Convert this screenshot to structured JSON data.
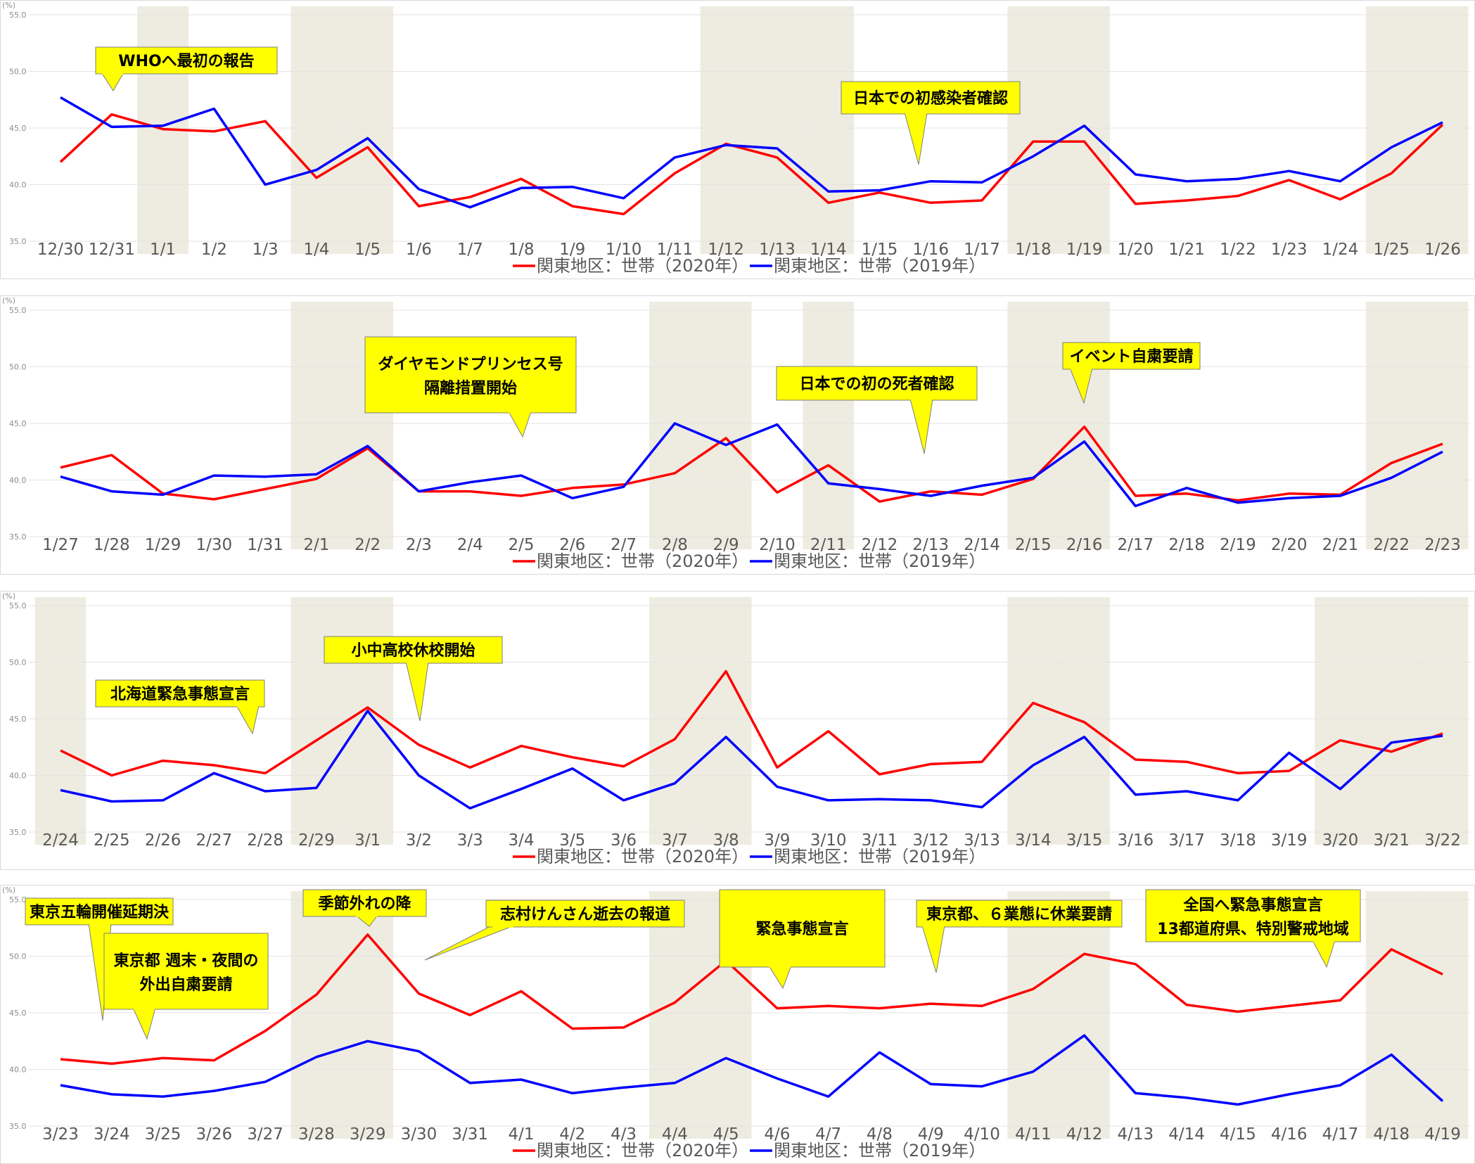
{
  "chart_data": [
    {
      "type": "line",
      "ylabel": "(%)",
      "ylim": [
        35,
        55
      ],
      "yticks": [
        "35.0",
        "40.0",
        "45.0",
        "50.0",
        "55.0"
      ],
      "categories": [
        "12/30",
        "12/31",
        "1/1",
        "1/2",
        "1/3",
        "1/4",
        "1/5",
        "1/6",
        "1/7",
        "1/8",
        "1/9",
        "1/10",
        "1/11",
        "1/12",
        "1/13",
        "1/14",
        "1/15",
        "1/16",
        "1/17",
        "1/18",
        "1/19",
        "1/20",
        "1/21",
        "1/22",
        "1/23",
        "1/24",
        "1/25",
        "1/26"
      ],
      "shaded_categories": [
        "1/1",
        "1/4",
        "1/5",
        "1/12",
        "1/13",
        "1/14",
        "1/18",
        "1/19",
        "1/25",
        "1/26"
      ],
      "series": [
        {
          "name": "関東地区：世帯（2020年）",
          "color": "#ff0000",
          "values": [
            42.0,
            46.2,
            44.9,
            44.7,
            45.6,
            40.6,
            43.3,
            38.1,
            38.9,
            40.5,
            38.1,
            37.4,
            41.0,
            43.6,
            42.4,
            38.4,
            39.3,
            38.4,
            38.6,
            43.8,
            43.8,
            38.3,
            38.6,
            39.0,
            40.4,
            38.7,
            41.0,
            45.3
          ]
        },
        {
          "name": "関東地区：世帯（2019年）",
          "color": "#0000ff",
          "values": [
            47.7,
            45.1,
            45.2,
            46.7,
            40.0,
            41.3,
            44.1,
            39.6,
            38.0,
            39.7,
            39.8,
            38.8,
            42.4,
            43.5,
            43.2,
            39.4,
            39.5,
            40.3,
            40.2,
            42.5,
            45.2,
            40.9,
            40.3,
            40.5,
            41.2,
            40.3,
            43.3,
            45.5
          ]
        }
      ],
      "annotations": [
        {
          "text": "WHOへ最初の報告",
          "anchor_category": "12/31"
        },
        {
          "text": "日本での初感染者確認",
          "anchor_category": "1/16"
        }
      ]
    },
    {
      "type": "line",
      "ylabel": "(%)",
      "ylim": [
        35,
        55
      ],
      "yticks": [
        "35.0",
        "40.0",
        "45.0",
        "50.0",
        "55.0"
      ],
      "categories": [
        "1/27",
        "1/28",
        "1/29",
        "1/30",
        "1/31",
        "2/1",
        "2/2",
        "2/3",
        "2/4",
        "2/5",
        "2/6",
        "2/7",
        "2/8",
        "2/9",
        "2/10",
        "2/11",
        "2/12",
        "2/13",
        "2/14",
        "2/15",
        "2/16",
        "2/17",
        "2/18",
        "2/19",
        "2/20",
        "2/21",
        "2/22",
        "2/23"
      ],
      "shaded_categories": [
        "2/1",
        "2/2",
        "2/8",
        "2/9",
        "2/11",
        "2/15",
        "2/16",
        "2/22",
        "2/23"
      ],
      "series": [
        {
          "name": "関東地区：世帯（2020年）",
          "color": "#ff0000",
          "values": [
            41.1,
            42.2,
            38.8,
            38.3,
            39.2,
            40.1,
            42.8,
            39.0,
            39.0,
            38.6,
            39.3,
            39.6,
            40.6,
            43.7,
            38.9,
            41.3,
            38.1,
            39.0,
            38.7,
            40.1,
            44.7,
            38.6,
            38.8,
            38.2,
            38.8,
            38.7,
            41.5,
            43.2
          ]
        },
        {
          "name": "関東地区：世帯（2019年）",
          "color": "#0000ff",
          "values": [
            40.3,
            39.0,
            38.7,
            40.4,
            40.3,
            40.5,
            43.0,
            39.0,
            39.8,
            40.4,
            38.4,
            39.4,
            45.0,
            43.1,
            44.9,
            39.7,
            39.2,
            38.6,
            39.5,
            40.2,
            43.4,
            37.7,
            39.3,
            38.0,
            38.4,
            38.6,
            40.2,
            42.5
          ]
        }
      ],
      "annotations": [
        {
          "text": "ダイヤモンドプリンセス号",
          "text2": "隔離措置開始",
          "anchor_category": "2/5"
        },
        {
          "text": "日本での初の死者確認",
          "anchor_category": "2/13"
        },
        {
          "text": "イベント自粛要請",
          "anchor_category": "2/16"
        }
      ]
    },
    {
      "type": "line",
      "ylabel": "(%)",
      "ylim": [
        35,
        55
      ],
      "yticks": [
        "35.0",
        "40.0",
        "45.0",
        "50.0",
        "55.0"
      ],
      "categories": [
        "2/24",
        "2/25",
        "2/26",
        "2/27",
        "2/28",
        "2/29",
        "3/1",
        "3/2",
        "3/3",
        "3/4",
        "3/5",
        "3/6",
        "3/7",
        "3/8",
        "3/9",
        "3/10",
        "3/11",
        "3/12",
        "3/13",
        "3/14",
        "3/15",
        "3/16",
        "3/17",
        "3/18",
        "3/19",
        "3/20",
        "3/21",
        "3/22"
      ],
      "shaded_categories": [
        "2/24",
        "2/29",
        "3/1",
        "3/7",
        "3/8",
        "3/14",
        "3/15",
        "3/20",
        "3/21",
        "3/22"
      ],
      "series": [
        {
          "name": "関東地区：世帯（2020年）",
          "color": "#ff0000",
          "values": [
            42.2,
            40.0,
            41.3,
            40.9,
            40.2,
            43.1,
            46.0,
            42.7,
            40.7,
            42.6,
            41.6,
            40.8,
            43.2,
            49.2,
            40.7,
            43.9,
            40.1,
            41.0,
            41.2,
            46.4,
            44.7,
            41.4,
            41.2,
            40.2,
            40.4,
            43.1,
            42.1,
            43.7
          ]
        },
        {
          "name": "関東地区：世帯（2019年）",
          "color": "#0000ff",
          "values": [
            38.7,
            37.7,
            37.8,
            40.2,
            38.6,
            38.9,
            45.7,
            40.0,
            37.1,
            38.8,
            40.6,
            37.8,
            39.3,
            43.4,
            39.0,
            37.8,
            37.9,
            37.8,
            37.2,
            40.9,
            43.4,
            38.3,
            38.6,
            37.8,
            42.0,
            38.8,
            42.9,
            43.5
          ]
        }
      ],
      "annotations": [
        {
          "text": "北海道緊急事態宣言",
          "anchor_category": "2/28"
        },
        {
          "text": "小中高校休校開始",
          "anchor_category": "3/2"
        }
      ]
    },
    {
      "type": "line",
      "ylabel": "(%)",
      "ylim": [
        35,
        55
      ],
      "yticks": [
        "35.0",
        "40.0",
        "45.0",
        "50.0",
        "55.0"
      ],
      "categories": [
        "3/23",
        "3/24",
        "3/25",
        "3/26",
        "3/27",
        "3/28",
        "3/29",
        "3/30",
        "3/31",
        "4/1",
        "4/2",
        "4/3",
        "4/4",
        "4/5",
        "4/6",
        "4/7",
        "4/8",
        "4/9",
        "4/10",
        "4/11",
        "4/12",
        "4/13",
        "4/14",
        "4/15",
        "4/16",
        "4/17",
        "4/18",
        "4/19"
      ],
      "shaded_categories": [
        "3/28",
        "3/29",
        "4/4",
        "4/5",
        "4/11",
        "4/12",
        "4/18",
        "4/19"
      ],
      "series": [
        {
          "name": "関東地区：世帯（2020年）",
          "color": "#ff0000",
          "values": [
            40.9,
            40.5,
            41.0,
            40.8,
            43.4,
            46.6,
            51.9,
            46.7,
            44.8,
            46.9,
            43.6,
            43.7,
            45.9,
            49.6,
            45.4,
            45.6,
            45.4,
            45.8,
            45.6,
            47.1,
            50.2,
            49.3,
            45.7,
            45.1,
            45.6,
            46.1,
            50.6,
            48.4
          ]
        },
        {
          "name": "関東地区：世帯（2019年）",
          "color": "#0000ff",
          "values": [
            38.6,
            37.8,
            37.6,
            38.1,
            38.9,
            41.1,
            42.5,
            41.6,
            38.8,
            39.1,
            37.9,
            38.4,
            38.8,
            41.0,
            39.2,
            37.6,
            41.5,
            38.7,
            38.5,
            39.8,
            43.0,
            37.9,
            37.5,
            36.9,
            37.8,
            38.6,
            41.3,
            37.2
          ]
        }
      ],
      "annotations": [
        {
          "text": "東京五輪開催延期決",
          "anchor_category": "3/24"
        },
        {
          "text": "東京都 週末・夜間の",
          "text2": "外出自粛要請",
          "anchor_category": "3/25"
        },
        {
          "text": "季節外れの降",
          "anchor_category": "3/29"
        },
        {
          "text": "志村けんさん逝去の報道",
          "anchor_category": "3/30"
        },
        {
          "text": "緊急事態宣言",
          "anchor_category": "4/6"
        },
        {
          "text": "東京都、６業態に休業要請",
          "anchor_category": "4/9"
        },
        {
          "text": "全国へ緊急事態宣言",
          "text2": "13都道府県、特別警戒地域",
          "anchor_category": "4/17"
        }
      ]
    }
  ]
}
